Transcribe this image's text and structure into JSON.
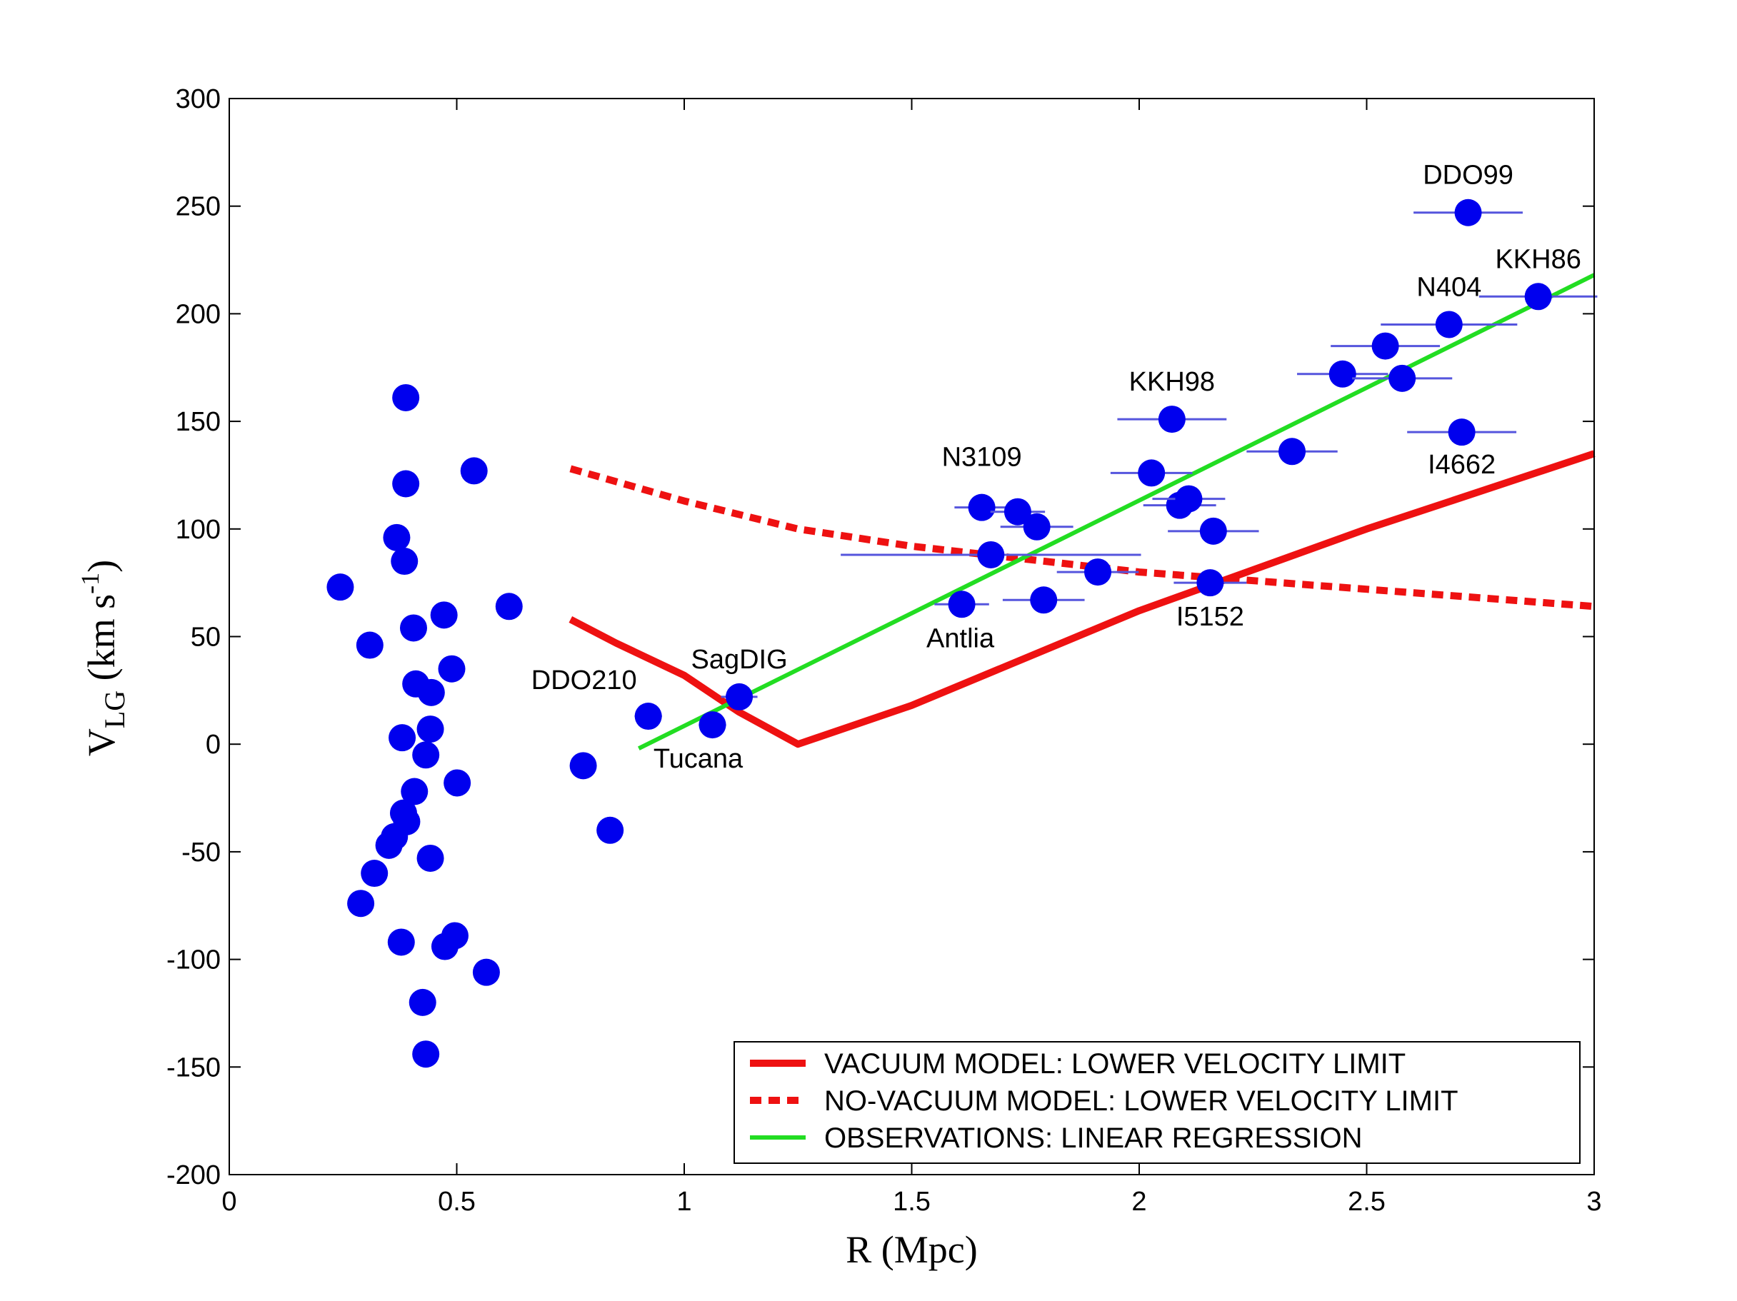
{
  "chart_data": {
    "type": "scatter",
    "title": "",
    "xlabel": "R (Mpc)",
    "ylabel_main": "V",
    "ylabel_sub": "LG",
    "ylabel_units": " (km s",
    "ylabel_sup": "-1",
    "ylabel_close": ")",
    "xlim": [
      0,
      3
    ],
    "ylim": [
      -200,
      300
    ],
    "xticks": [
      0,
      0.5,
      1,
      1.5,
      2,
      2.5,
      3
    ],
    "xtick_labels": [
      "0",
      "0.5",
      "1",
      "1.5",
      "2",
      "2.5",
      "3"
    ],
    "yticks": [
      -200,
      -150,
      -100,
      -50,
      0,
      50,
      100,
      150,
      200,
      250,
      300
    ],
    "ytick_labels": [
      "-200",
      "-150",
      "-100",
      "-50",
      "0",
      "50",
      "100",
      "150",
      "200",
      "250",
      "300"
    ],
    "grid": false,
    "colors": {
      "points": "#0000ee",
      "errorbars": "#5555dd",
      "vacuum": "#ee1111",
      "novacuum": "#ee1111",
      "regression": "#22dd22",
      "axes": "#000000"
    },
    "points": [
      {
        "x": 0.244,
        "y": 73
      },
      {
        "x": 0.309,
        "y": 46
      },
      {
        "x": 0.388,
        "y": 161
      },
      {
        "x": 0.388,
        "y": 121
      },
      {
        "x": 0.368,
        "y": 96
      },
      {
        "x": 0.385,
        "y": 85
      },
      {
        "x": 0.538,
        "y": 127
      },
      {
        "x": 0.615,
        "y": 64
      },
      {
        "x": 0.405,
        "y": 54
      },
      {
        "x": 0.472,
        "y": 60
      },
      {
        "x": 0.41,
        "y": 28
      },
      {
        "x": 0.444,
        "y": 24
      },
      {
        "x": 0.489,
        "y": 35
      },
      {
        "x": 0.38,
        "y": 3
      },
      {
        "x": 0.442,
        "y": 7
      },
      {
        "x": 0.432,
        "y": -5
      },
      {
        "x": 0.501,
        "y": -18
      },
      {
        "x": 0.407,
        "y": -22
      },
      {
        "x": 0.39,
        "y": -36
      },
      {
        "x": 0.383,
        "y": -32
      },
      {
        "x": 0.363,
        "y": -43
      },
      {
        "x": 0.351,
        "y": -47
      },
      {
        "x": 0.319,
        "y": -60
      },
      {
        "x": 0.289,
        "y": -74
      },
      {
        "x": 0.442,
        "y": -53
      },
      {
        "x": 0.378,
        "y": -92
      },
      {
        "x": 0.496,
        "y": -89
      },
      {
        "x": 0.474,
        "y": -94
      },
      {
        "x": 0.565,
        "y": -106
      },
      {
        "x": 0.425,
        "y": -120
      },
      {
        "x": 0.432,
        "y": -144
      },
      {
        "x": 0.778,
        "y": -10
      },
      {
        "x": 0.837,
        "y": -40
      },
      {
        "x": 0.921,
        "y": 13,
        "xerr": 0.03,
        "label": "DDO210"
      },
      {
        "x": 1.062,
        "y": 9,
        "xerr": 0.03,
        "label": "Tucana"
      },
      {
        "x": 1.121,
        "y": 22,
        "xerr": 0.04,
        "label": "SagDIG"
      },
      {
        "x": 1.61,
        "y": 65,
        "xerr": 0.06,
        "label": "Antlia"
      },
      {
        "x": 1.674,
        "y": 88,
        "xerr": 0.33,
        "label": ""
      },
      {
        "x": 1.654,
        "y": 110,
        "xerr": 0.06,
        "label": "N3109"
      },
      {
        "x": 1.733,
        "y": 108,
        "xerr": 0.06
      },
      {
        "x": 1.775,
        "y": 101,
        "xerr": 0.08
      },
      {
        "x": 1.79,
        "y": 67,
        "xerr": 0.09
      },
      {
        "x": 1.909,
        "y": 80,
        "xerr": 0.09
      },
      {
        "x": 2.072,
        "y": 151,
        "xerr": 0.12,
        "label": "KKH98"
      },
      {
        "x": 2.027,
        "y": 126,
        "xerr": 0.09
      },
      {
        "x": 2.089,
        "y": 111,
        "xerr": 0.08
      },
      {
        "x": 2.109,
        "y": 114,
        "xerr": 0.08
      },
      {
        "x": 2.163,
        "y": 99,
        "xerr": 0.1
      },
      {
        "x": 2.156,
        "y": 75,
        "xerr": 0.08,
        "label": "I5152"
      },
      {
        "x": 2.336,
        "y": 136,
        "xerr": 0.1
      },
      {
        "x": 2.447,
        "y": 172,
        "xerr": 0.1
      },
      {
        "x": 2.541,
        "y": 185,
        "xerr": 0.12
      },
      {
        "x": 2.578,
        "y": 170,
        "xerr": 0.11
      },
      {
        "x": 2.681,
        "y": 195,
        "xerr": 0.15,
        "label": "N404"
      },
      {
        "x": 2.709,
        "y": 145,
        "xerr": 0.12,
        "label": "I4662"
      },
      {
        "x": 2.723,
        "y": 247,
        "xerr": 0.12,
        "label": "DDO99"
      },
      {
        "x": 2.877,
        "y": 208,
        "xerr": 0.13,
        "label": "KKH86"
      }
    ],
    "series": [
      {
        "name": "VACUUM MODEL: LOWER VELOCITY LIMIT",
        "style": "solid",
        "x": [
          0.75,
          0.85,
          1.0,
          1.12,
          1.25,
          1.5,
          2.0,
          2.5,
          3.0
        ],
        "y": [
          58,
          47,
          32,
          15,
          0,
          18,
          62,
          100,
          135
        ]
      },
      {
        "name": "NO-VACUUM  MODEL: LOWER VELOCITY LIMIT",
        "style": "dashed",
        "x": [
          0.75,
          1.0,
          1.25,
          1.5,
          2.0,
          2.5,
          3.0
        ],
        "y": [
          128,
          113,
          100,
          92,
          80,
          72,
          64
        ]
      },
      {
        "name": "OBSERVATIONS:  LINEAR  REGRESSION",
        "style": "solid",
        "x": [
          0.9,
          3.0
        ],
        "y": [
          -2,
          218
        ]
      }
    ],
    "legend": {
      "placement": "bottom-right",
      "entries": [
        "VACUUM MODEL: LOWER VELOCITY LIMIT",
        "NO-VACUUM  MODEL: LOWER VELOCITY LIMIT",
        "OBSERVATIONS:  LINEAR  REGRESSION"
      ]
    },
    "label_offsets_note": "labels placed relative to points by script"
  }
}
